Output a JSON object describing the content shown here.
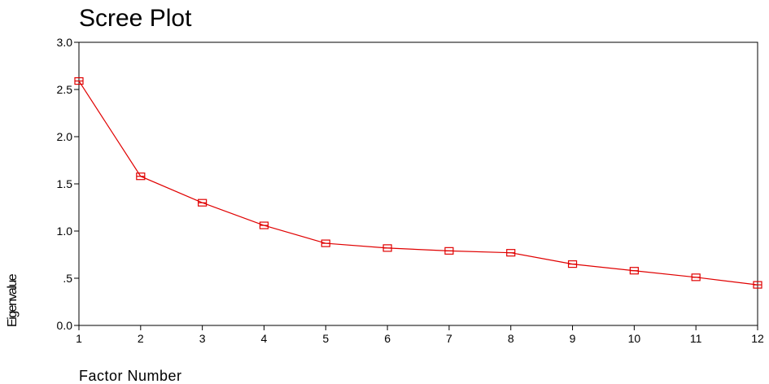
{
  "chart_data": {
    "type": "line",
    "title": "Scree Plot",
    "xlabel": "Factor Number",
    "ylabel": "Eigenvalue",
    "x": [
      1,
      2,
      3,
      4,
      5,
      6,
      7,
      8,
      9,
      10,
      11,
      12
    ],
    "x_tick_labels": [
      "1",
      "2",
      "3",
      "4",
      "5",
      "6",
      "7",
      "8",
      "9",
      "10",
      "11",
      "12"
    ],
    "y_tick_values": [
      0,
      0.5,
      1.0,
      1.5,
      2.0,
      2.5,
      3.0
    ],
    "y_tick_labels": [
      "0.0",
      ".5",
      "1.0",
      "1.5",
      "2.0",
      "2.5",
      "3.0"
    ],
    "xlim": [
      1,
      12
    ],
    "ylim": [
      0,
      3.0
    ],
    "grid": false,
    "series": [
      {
        "values": [
          2.59,
          1.58,
          1.3,
          1.06,
          0.87,
          0.82,
          0.79,
          0.77,
          0.65,
          0.58,
          0.51,
          0.43
        ],
        "color": "#e00000",
        "marker": "square-with-line"
      }
    ]
  }
}
